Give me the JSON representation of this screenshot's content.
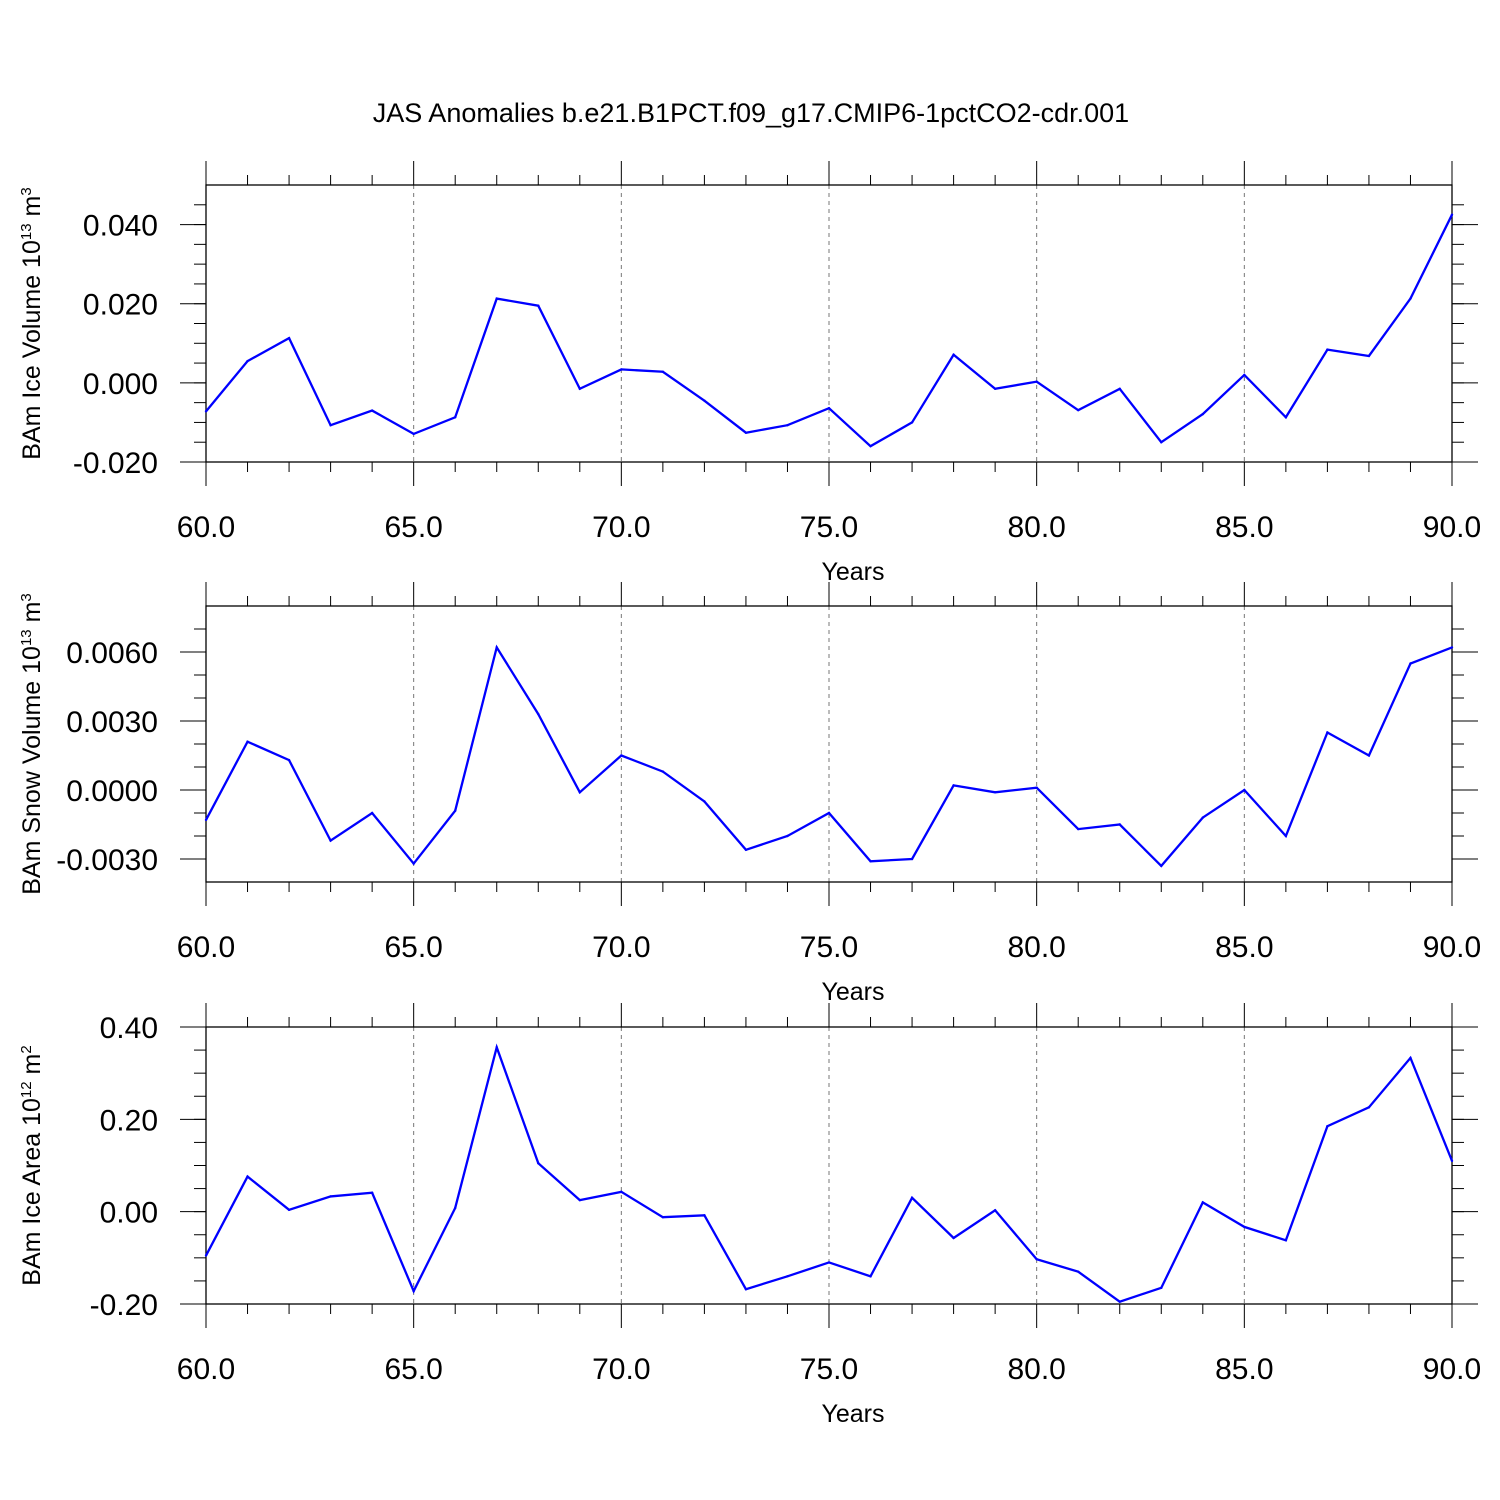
{
  "chart_data": [
    {
      "type": "line",
      "title": "JAS Anomalies b.e21.B1PCT.f09_g17.CMIP6-1pctCO2-cdr.001",
      "ylabel": "BAm Ice Volume",
      "ylabel_base": "10",
      "ylabel_exp": "13",
      "ylabel_unit": "m",
      "ylabel_unit_exp": "3",
      "xlabel": "Years",
      "xlim": [
        60,
        90
      ],
      "ylim": [
        -0.02,
        0.05
      ],
      "x_ticks": [
        "60.0",
        "65.0",
        "70.0",
        "75.0",
        "80.0",
        "85.0",
        "90.0"
      ],
      "y_ticks": [
        {
          "v": -0.02,
          "label": "-0.020"
        },
        {
          "v": 0.0,
          "label": "0.000"
        },
        {
          "v": 0.02,
          "label": "0.020"
        },
        {
          "v": 0.04,
          "label": "0.040"
        }
      ],
      "y_minor_step": 0.005,
      "grid": "vertical dashed at x major ticks",
      "line_color": "#0000ff",
      "x": [
        60,
        61,
        62,
        63,
        64,
        65,
        66,
        67,
        68,
        69,
        70,
        71,
        72,
        73,
        74,
        75,
        76,
        77,
        78,
        79,
        80,
        81,
        82,
        83,
        84,
        85,
        86,
        87,
        88,
        89,
        90
      ],
      "values": [
        -0.0072,
        0.0055,
        0.0113,
        -0.0107,
        -0.007,
        -0.0129,
        -0.0087,
        0.0213,
        0.0195,
        -0.0015,
        0.0034,
        0.0028,
        -0.0045,
        -0.0126,
        -0.0107,
        -0.0064,
        -0.016,
        -0.01,
        0.0071,
        -0.0015,
        0.0003,
        -0.0069,
        -0.0015,
        -0.015,
        -0.0079,
        0.002,
        -0.0087,
        0.0084,
        0.0068,
        0.0213,
        0.0425
      ]
    },
    {
      "type": "line",
      "ylabel": "BAm Snow Volume",
      "ylabel_base": "10",
      "ylabel_exp": "13",
      "ylabel_unit": "m",
      "ylabel_unit_exp": "3",
      "xlabel": "Years",
      "xlim": [
        60,
        90
      ],
      "ylim": [
        -0.004,
        0.008
      ],
      "x_ticks": [
        "60.0",
        "65.0",
        "70.0",
        "75.0",
        "80.0",
        "85.0",
        "90.0"
      ],
      "y_ticks": [
        {
          "v": -0.003,
          "label": "-0.0030"
        },
        {
          "v": 0.0,
          "label": "0.0000"
        },
        {
          "v": 0.003,
          "label": "0.0030"
        },
        {
          "v": 0.006,
          "label": "0.0060"
        }
      ],
      "y_minor_step": 0.001,
      "grid": "vertical dashed at x major ticks",
      "line_color": "#0000ff",
      "x": [
        60,
        61,
        62,
        63,
        64,
        65,
        66,
        67,
        68,
        69,
        70,
        71,
        72,
        73,
        74,
        75,
        76,
        77,
        78,
        79,
        80,
        81,
        82,
        83,
        84,
        85,
        86,
        87,
        88,
        89,
        90
      ],
      "values": [
        -0.0013,
        0.0021,
        0.0013,
        -0.0022,
        -0.001,
        -0.0032,
        -0.0009,
        0.0062,
        0.0033,
        -0.0001,
        0.0015,
        0.0008,
        -0.0005,
        -0.0026,
        -0.002,
        -0.001,
        -0.0031,
        -0.003,
        0.0002,
        -0.0001,
        0.0001,
        -0.0017,
        -0.0015,
        -0.0033,
        -0.0012,
        0.0,
        -0.002,
        0.0025,
        0.0015,
        0.0055,
        0.0062
      ]
    },
    {
      "type": "line",
      "ylabel": "BAm Ice Area",
      "ylabel_base": "10",
      "ylabel_exp": "12",
      "ylabel_unit": "m",
      "ylabel_unit_exp": "2",
      "xlabel": "Years",
      "xlim": [
        60,
        90
      ],
      "ylim": [
        -0.2,
        0.4
      ],
      "x_ticks": [
        "60.0",
        "65.0",
        "70.0",
        "75.0",
        "80.0",
        "85.0",
        "90.0"
      ],
      "y_ticks": [
        {
          "v": -0.2,
          "label": "-0.20"
        },
        {
          "v": 0.0,
          "label": "0.00"
        },
        {
          "v": 0.2,
          "label": "0.20"
        },
        {
          "v": 0.4,
          "label": "0.40"
        }
      ],
      "y_minor_step": 0.05,
      "grid": "vertical dashed at x major ticks",
      "line_color": "#0000ff",
      "x": [
        60,
        61,
        62,
        63,
        64,
        65,
        66,
        67,
        68,
        69,
        70,
        71,
        72,
        73,
        74,
        75,
        76,
        77,
        78,
        79,
        80,
        81,
        82,
        83,
        84,
        85,
        86,
        87,
        88,
        89,
        90
      ],
      "values": [
        -0.095,
        0.076,
        0.004,
        0.033,
        0.041,
        -0.172,
        0.008,
        0.356,
        0.105,
        0.025,
        0.043,
        -0.012,
        -0.008,
        -0.168,
        -0.14,
        -0.11,
        -0.14,
        0.03,
        -0.057,
        0.003,
        -0.103,
        -0.13,
        -0.195,
        -0.165,
        0.02,
        -0.033,
        -0.062,
        0.185,
        0.226,
        0.333,
        0.11
      ]
    }
  ]
}
